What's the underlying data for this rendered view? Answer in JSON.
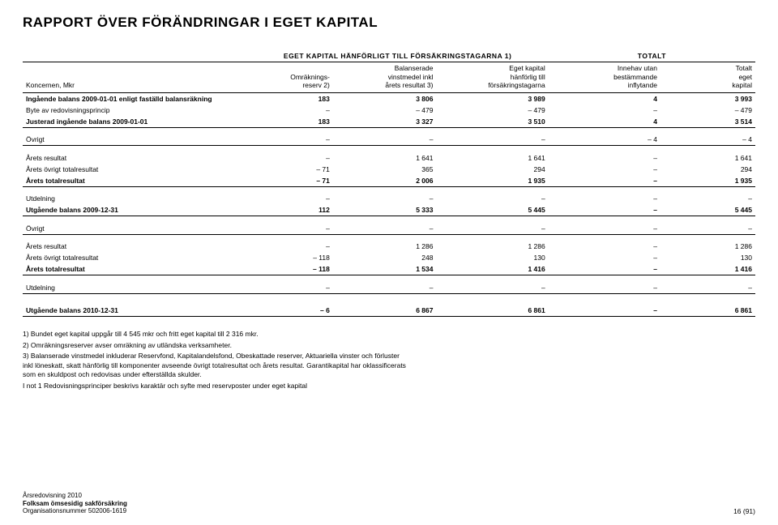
{
  "title": "RAPPORT ÖVER FÖRÄNDRINGAR I EGET KAPITAL",
  "group_headers": {
    "left": "",
    "mid": "EGET KAPITAL HÄNFÖRLIGT TILL FÖRSÄKRINGSTAGARNA 1)",
    "right": "TOTALT"
  },
  "columns": {
    "c0": "Koncernen, Mkr",
    "c1a": "Omräknings-",
    "c1b": "reserv 2)",
    "c2a": "Balanserade",
    "c2b": "vinstmedel inkl",
    "c2c": "årets resultat 3)",
    "c3a": "Eget kapital",
    "c3b": "hänförlig till",
    "c3c": "försäkringstagarna",
    "c4a": "Innehav utan",
    "c4b": "bestämmande",
    "c4c": "inflytande",
    "c5a": "Totalt",
    "c5b": "eget",
    "c5c": "kapital"
  },
  "rows": {
    "r1": {
      "label": "Ingående balans 2009-01-01 enligt faställd balansräkning",
      "v": [
        "183",
        "3 806",
        "3 989",
        "4",
        "3 993"
      ],
      "bold": true
    },
    "r2": {
      "label": "Byte av redovisningsprincip",
      "v": [
        "–",
        "– 479",
        "– 479",
        "–",
        "– 479"
      ]
    },
    "r3": {
      "label": "Justerad ingående balans 2009-01-01",
      "v": [
        "183",
        "3 327",
        "3 510",
        "4",
        "3 514"
      ],
      "bold": true,
      "sep": true
    },
    "r4": {
      "label": "Övrigt",
      "v": [
        "–",
        "–",
        "–",
        "– 4",
        "– 4"
      ],
      "sep": true
    },
    "r5": {
      "label": "Årets resultat",
      "v": [
        "–",
        "1 641",
        "1 641",
        "–",
        "1 641"
      ]
    },
    "r6": {
      "label": "Årets övrigt totalresultat",
      "v": [
        "– 71",
        "365",
        "294",
        "–",
        "294"
      ]
    },
    "r7": {
      "label": "Årets totalresultat",
      "v": [
        "– 71",
        "2 006",
        "1 935",
        "–",
        "1 935"
      ],
      "bold": true,
      "sep": true
    },
    "r8": {
      "label": "Utdelning",
      "v": [
        "–",
        "–",
        "–",
        "–",
        "–"
      ]
    },
    "r9": {
      "label": "Utgående balans 2009-12-31",
      "v": [
        "112",
        "5 333",
        "5 445",
        "–",
        "5 445"
      ],
      "bold": true,
      "sep": true
    },
    "r10": {
      "label": "Övrigt",
      "v": [
        "–",
        "–",
        "–",
        "–",
        "–"
      ],
      "sep": true
    },
    "r11": {
      "label": "Årets resultat",
      "v": [
        "–",
        "1 286",
        "1 286",
        "–",
        "1 286"
      ]
    },
    "r12": {
      "label": "Årets övrigt totalresultat",
      "v": [
        "– 118",
        "248",
        "130",
        "–",
        "130"
      ]
    },
    "r13": {
      "label": "Årets totalresultat",
      "v": [
        "– 118",
        "1 534",
        "1 416",
        "–",
        "1 416"
      ],
      "bold": true,
      "sep": true
    },
    "r14": {
      "label": "Utdelning",
      "v": [
        "–",
        "–",
        "–",
        "–",
        "–"
      ],
      "sep": true
    },
    "r15": {
      "label": "Utgående balans 2010-12-31",
      "v": [
        "– 6",
        "6 867",
        "6 861",
        "–",
        "6 861"
      ],
      "bold": true,
      "sep": true
    }
  },
  "row_order": [
    "r1",
    "r2",
    "r3",
    "gap",
    "r4",
    "gap",
    "r5",
    "r6",
    "r7",
    "gap",
    "r8",
    "r9",
    "gap",
    "r10",
    "gap",
    "r11",
    "r12",
    "r13",
    "gap",
    "r14",
    "biggap",
    "r15"
  ],
  "footnotes": {
    "f1": "1)  Bundet eget kapital uppgår till 4 545 mkr och fritt eget kapital till 2 316 mkr.",
    "f2": "2)  Omräkningsreserver avser omräkning av utländska verksamheter.",
    "f3": "3)  Balanserade vinstmedel inkluderar Reservfond, Kapitalandelsfond, Obeskattade reserver, Aktuariella vinster och förluster inkl löneskatt, skatt hänförlig till komponenter avseende övrigt totalresultat och årets resultat. Garantikapital har oklassificerats som en skuldpost och redovisas under efterställda skulder.",
    "f4": "I not 1 Redovisningsprinciper beskrivs karaktär och syfte med reservposter under eget kapital"
  },
  "footer": {
    "year": "Årsredovisning 2010",
    "company": "Folksam ömsesidig sakförsäkring",
    "org": "Organisationsnummer 502006-1619",
    "page": "16 (91)"
  }
}
